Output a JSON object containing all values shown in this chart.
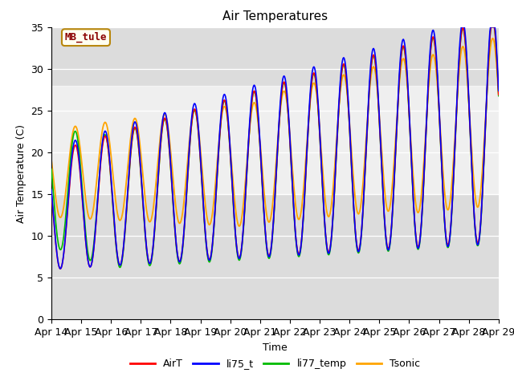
{
  "title": "Air Temperatures",
  "xlabel": "Time",
  "ylabel": "Air Temperature (C)",
  "ylim": [
    0,
    35
  ],
  "xlim": [
    0,
    15
  ],
  "x_tick_labels": [
    "Apr 14",
    "Apr 15",
    "Apr 16",
    "Apr 17",
    "Apr 18",
    "Apr 19",
    "Apr 20",
    "Apr 21",
    "Apr 22",
    "Apr 23",
    "Apr 24",
    "Apr 25",
    "Apr 26",
    "Apr 27",
    "Apr 28",
    "Apr 29"
  ],
  "shade_ymin": 15,
  "shade_ymax": 28,
  "annotation_text": "MB_tule",
  "annotation_color": "#8B0000",
  "annotation_bg": "#FFFFF0",
  "line_colors": {
    "AirT": "#FF0000",
    "li75_t": "#0000FF",
    "li77_temp": "#00BB00",
    "Tsonic": "#FFA500"
  },
  "background_color": "#DCDCDC",
  "figsize": [
    6.4,
    4.8
  ],
  "dpi": 100
}
